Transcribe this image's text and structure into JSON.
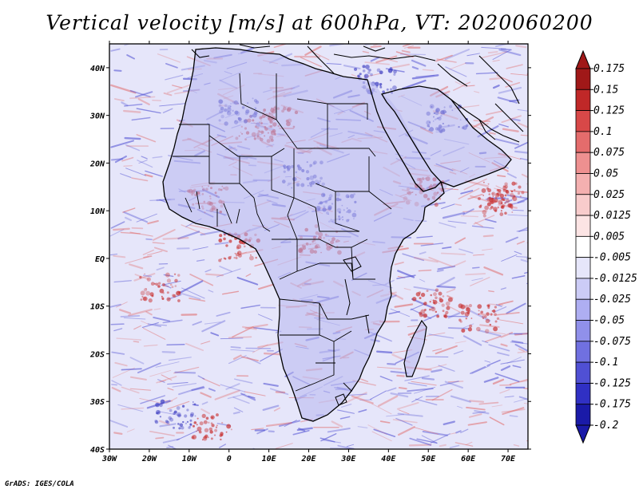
{
  "title": "Vertical velocity [m/s] at 600hPa, VT: 2020060200",
  "credit": "GrADS: IGES/COLA",
  "map": {
    "lon_range": [
      -30,
      75
    ],
    "lat_range": [
      -40,
      45
    ],
    "x_ticks": [
      "30W",
      "20W",
      "10W",
      "0",
      "10E",
      "20E",
      "30E",
      "40E",
      "50E",
      "60E",
      "70E"
    ],
    "y_ticks": [
      "40N",
      "30N",
      "20N",
      "10N",
      "EQ",
      "10S",
      "20S",
      "30S",
      "40S"
    ]
  },
  "colorbar": {
    "levels": [
      "0.175",
      "0.15",
      "0.125",
      "0.1",
      "0.075",
      "0.05",
      "0.025",
      "0.0125",
      "0.005",
      "-0.005",
      "-0.0125",
      "-0.025",
      "-0.05",
      "-0.075",
      "-0.1",
      "-0.125",
      "-0.175",
      "-0.2"
    ],
    "colors": [
      "#a01818",
      "#c02828",
      "#d84848",
      "#e46c6c",
      "#ee9090",
      "#f4b0b0",
      "#f8cccc",
      "#fce4e4",
      "#ffffff",
      "#e6e6fa",
      "#ccccf6",
      "#aeaef2",
      "#9090ea",
      "#7070e0",
      "#5050d4",
      "#3030c4",
      "#1a1aa8"
    ]
  },
  "colors": {
    "land_base": "#b4b4ee",
    "ocean_base": "#e6e6fa",
    "upward": "#4848d0",
    "downward": "#e06a6a",
    "border": "#000000"
  }
}
